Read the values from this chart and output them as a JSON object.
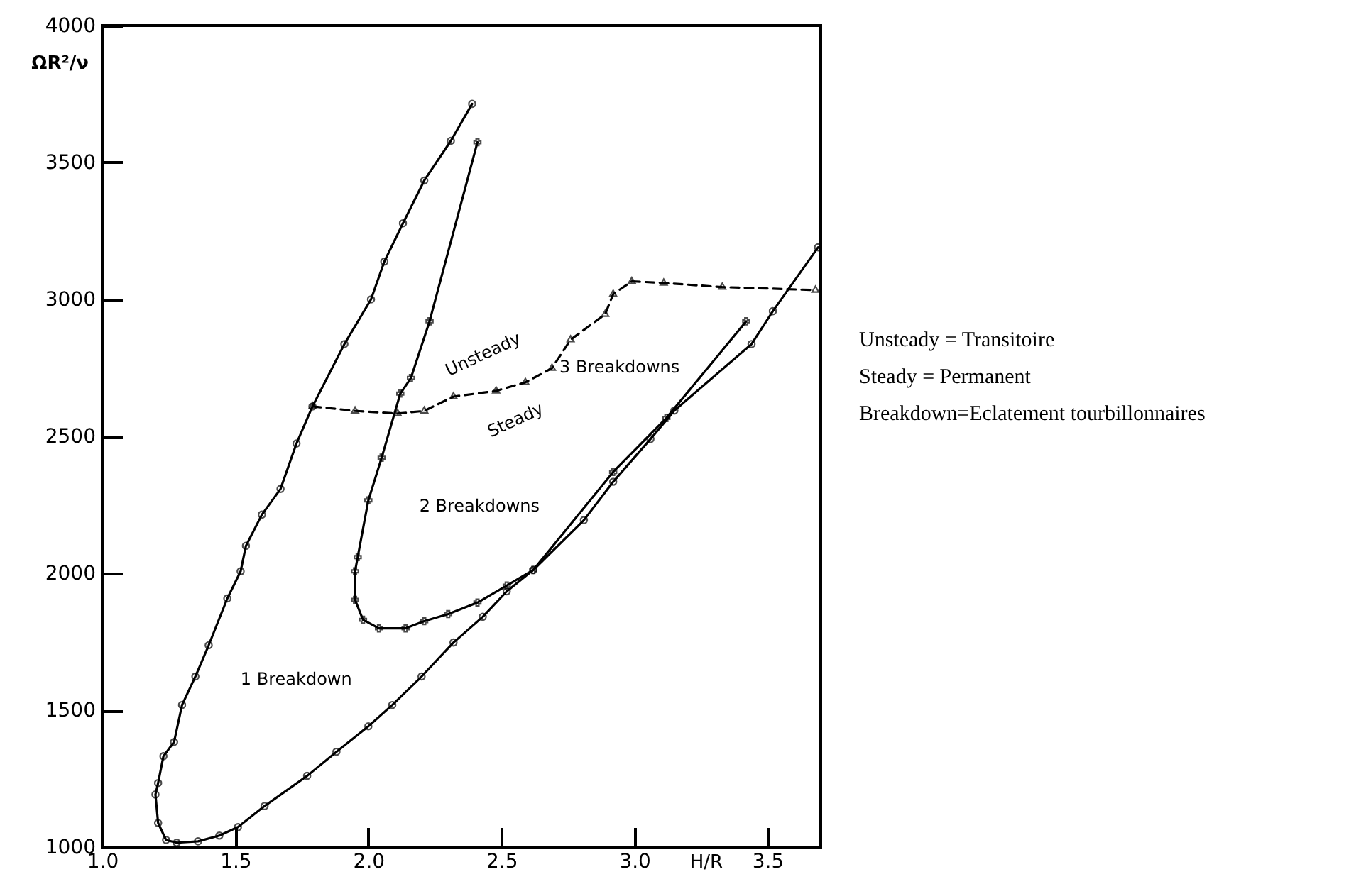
{
  "chart_data": {
    "type": "line",
    "xlabel": "H/R",
    "ylabel": "ΩR²/ν",
    "xlim": [
      1.0,
      3.7
    ],
    "ylim": [
      1000,
      4000
    ],
    "xticks": [
      {
        "value": 1.0,
        "label": "1.0"
      },
      1.5,
      {
        "value": 2.0,
        "label": "2.0"
      },
      2.5,
      {
        "value": 3.0,
        "label": "3.0"
      },
      3.5
    ],
    "yticks": [
      1000,
      1500,
      2000,
      2500,
      3000,
      3500,
      4000
    ],
    "grid": false,
    "series": [
      {
        "color": "#000000",
        "marker": "circle",
        "line_style": "solid",
        "x": [
          2.39,
          2.31,
          2.21,
          2.13,
          2.06,
          2.01,
          1.91,
          1.79,
          1.73,
          1.67,
          1.6,
          1.54,
          1.52,
          1.47,
          1.4,
          1.35,
          1.3,
          1.27,
          1.23,
          1.21,
          1.2,
          1.21,
          1.24,
          1.28,
          1.36,
          1.44,
          1.51,
          1.61,
          1.77,
          1.88,
          2.0,
          2.09,
          2.2,
          2.32,
          2.43,
          2.52,
          2.62,
          2.81,
          2.92,
          3.06,
          3.15,
          3.44,
          3.52,
          3.69
        ],
        "values": [
          3714,
          3579,
          3434,
          3278,
          3138,
          3000,
          2837,
          2609,
          2474,
          2308,
          2214,
          2100,
          2007,
          1908,
          1737,
          1623,
          1519,
          1384,
          1332,
          1234,
          1192,
          1088,
          1026,
          1016,
          1021,
          1042,
          1073,
          1150,
          1260,
          1348,
          1441,
          1519,
          1623,
          1747,
          1841,
          1934,
          2012,
          2194,
          2334,
          2490,
          2594,
          2837,
          2957,
          3190
        ]
      },
      {
        "color": "#000000",
        "marker": "cross",
        "line_style": "solid",
        "x": [
          2.41,
          2.23,
          2.16,
          2.12,
          2.05,
          2.0,
          1.96,
          1.95,
          1.95,
          1.98,
          2.04,
          2.14,
          2.21,
          2.3,
          2.41,
          2.52,
          2.62,
          2.92,
          3.12,
          3.42
        ],
        "values": [
          3574,
          2920,
          2713,
          2656,
          2422,
          2266,
          2059,
          2007,
          1903,
          1830,
          1799,
          1799,
          1825,
          1851,
          1893,
          1955,
          2012,
          2370,
          2567,
          2920
        ]
      },
      {
        "color": "#000000",
        "marker": "triangle",
        "line_style": "dashed",
        "x": [
          1.79,
          1.95,
          2.11,
          2.21,
          2.32,
          2.48,
          2.59,
          2.69,
          2.76,
          2.89,
          2.92,
          2.99,
          3.11,
          3.33,
          3.68
        ],
        "values": [
          2609,
          2593,
          2583,
          2593,
          2645,
          2666,
          2697,
          2749,
          2853,
          2946,
          3019,
          3066,
          3060,
          3045,
          3034
        ]
      }
    ],
    "annotations": [
      "Unsteady",
      "Steady",
      "1 Breakdown",
      "2 Breakdowns",
      "3 Breakdowns",
      "Unsteady = Transitoire",
      "Steady = Permanent",
      "Breakdown=Eclatement tourbillonnaires"
    ]
  }
}
